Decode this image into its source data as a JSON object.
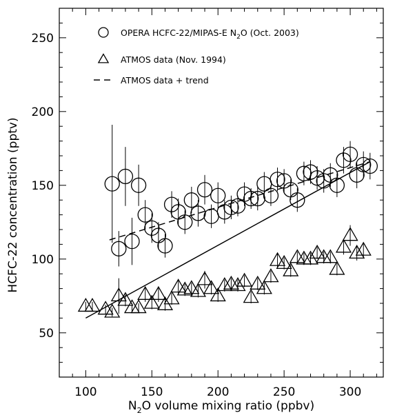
{
  "chart_data": {
    "type": "scatter",
    "xlabel": {
      "pre": "N",
      "sub": "2",
      "post": "O volume mixing ratio (ppbv)"
    },
    "ylabel": "HCFC-22 concentration (pptv)",
    "xlim": [
      80,
      325
    ],
    "ylim": [
      20,
      270
    ],
    "xticks": [
      100,
      150,
      200,
      250,
      300
    ],
    "yticks": [
      50,
      100,
      150,
      200,
      250
    ],
    "grid": false,
    "legend_position": "top-left",
    "legend": {
      "opera": {
        "pre": "OPERA HCFC-22/MIPAS-E N",
        "sub": "2",
        "post": "O (Oct. 2003)"
      },
      "atmos": "ATMOS data (Nov. 1994)",
      "trend": "ATMOS data + trend"
    },
    "series": [
      {
        "key": "opera",
        "marker": "circle",
        "points": [
          [
            120,
            151,
            40
          ],
          [
            125,
            107,
            12
          ],
          [
            130,
            156,
            20
          ],
          [
            135,
            112,
            16
          ],
          [
            140,
            150,
            14
          ],
          [
            145,
            130,
            10
          ],
          [
            150,
            121,
            10
          ],
          [
            155,
            116,
            9
          ],
          [
            160,
            109,
            8
          ],
          [
            165,
            137,
            9
          ],
          [
            170,
            132,
            9
          ],
          [
            175,
            125,
            8
          ],
          [
            180,
            140,
            9
          ],
          [
            185,
            131,
            9
          ],
          [
            190,
            147,
            10
          ],
          [
            195,
            129,
            8
          ],
          [
            200,
            143,
            9
          ],
          [
            205,
            132,
            8
          ],
          [
            210,
            135,
            8
          ],
          [
            215,
            136,
            7
          ],
          [
            220,
            144,
            8
          ],
          [
            225,
            141,
            7
          ],
          [
            230,
            141,
            8
          ],
          [
            235,
            151,
            8
          ],
          [
            240,
            143,
            7
          ],
          [
            245,
            154,
            8
          ],
          [
            250,
            153,
            8
          ],
          [
            255,
            147,
            7
          ],
          [
            260,
            140,
            8
          ],
          [
            265,
            158,
            8
          ],
          [
            270,
            159,
            8
          ],
          [
            275,
            155,
            8
          ],
          [
            280,
            153,
            8
          ],
          [
            285,
            157,
            8
          ],
          [
            290,
            150,
            8
          ],
          [
            295,
            167,
            9
          ],
          [
            300,
            171,
            9
          ],
          [
            305,
            157,
            9
          ],
          [
            310,
            164,
            9
          ],
          [
            315,
            163,
            9
          ]
        ]
      },
      {
        "key": "atmos",
        "marker": "triangle",
        "points": [
          [
            100,
            68,
            3
          ],
          [
            105,
            68,
            3
          ],
          [
            115,
            66,
            3
          ],
          [
            120,
            64,
            3
          ],
          [
            125,
            75,
            12
          ],
          [
            130,
            72,
            4
          ],
          [
            135,
            67,
            3
          ],
          [
            140,
            67,
            3
          ],
          [
            145,
            76,
            5
          ],
          [
            150,
            70,
            4
          ],
          [
            155,
            76,
            5
          ],
          [
            160,
            69,
            4
          ],
          [
            165,
            73,
            4
          ],
          [
            170,
            81,
            5
          ],
          [
            175,
            79,
            4
          ],
          [
            180,
            80,
            4
          ],
          [
            185,
            78,
            4
          ],
          [
            190,
            86,
            6
          ],
          [
            195,
            80,
            4
          ],
          [
            200,
            75,
            4
          ],
          [
            205,
            82,
            4
          ],
          [
            210,
            83,
            4
          ],
          [
            215,
            82,
            4
          ],
          [
            220,
            85,
            4
          ],
          [
            225,
            74,
            4
          ],
          [
            230,
            83,
            4
          ],
          [
            235,
            80,
            4
          ],
          [
            240,
            88,
            4
          ],
          [
            245,
            99,
            5
          ],
          [
            250,
            97,
            4
          ],
          [
            255,
            92,
            4
          ],
          [
            260,
            101,
            4
          ],
          [
            265,
            100,
            4
          ],
          [
            270,
            100,
            4
          ],
          [
            275,
            104,
            4
          ],
          [
            280,
            101,
            4
          ],
          [
            285,
            101,
            4
          ],
          [
            290,
            93,
            4
          ],
          [
            295,
            108,
            5
          ],
          [
            300,
            116,
            7
          ],
          [
            305,
            104,
            5
          ],
          [
            310,
            106,
            5
          ]
        ]
      }
    ],
    "lines": [
      {
        "key": "atmos_fit",
        "style": "solid",
        "from": [
          100,
          60
        ],
        "to": [
          315,
          166
        ]
      },
      {
        "key": "atmos_trend",
        "style": "dashed",
        "from": [
          118,
          113
        ],
        "to": [
          315,
          166
        ]
      }
    ]
  }
}
